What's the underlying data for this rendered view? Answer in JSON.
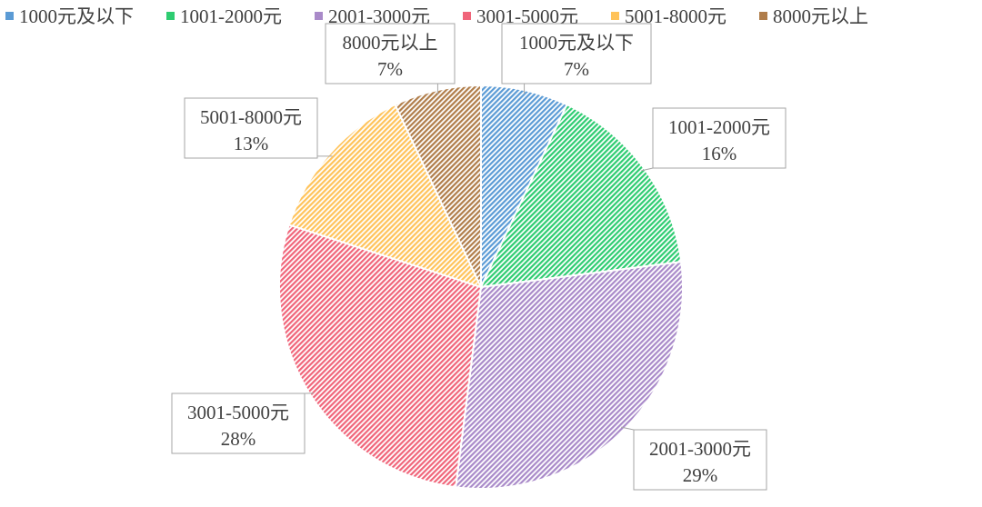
{
  "chart_data": {
    "type": "pie",
    "title": "",
    "categories": [
      "1000元及以下",
      "1001-2000元",
      "2001-3000元",
      "3001-5000元",
      "5001-8000元",
      "8000元以上"
    ],
    "values": [
      7,
      16,
      29,
      28,
      13,
      7
    ],
    "value_labels": [
      "7%",
      "16%",
      "29%",
      "28%",
      "13%",
      "7%"
    ],
    "colors": [
      "#5b9bd5",
      "#2ecc71",
      "#a98ac9",
      "#f0657a",
      "#ffc35a",
      "#b07d4a"
    ],
    "start_angle_deg": 0,
    "direction": "clockwise",
    "pattern": "diagonal-hatch",
    "legend_position": "top"
  }
}
